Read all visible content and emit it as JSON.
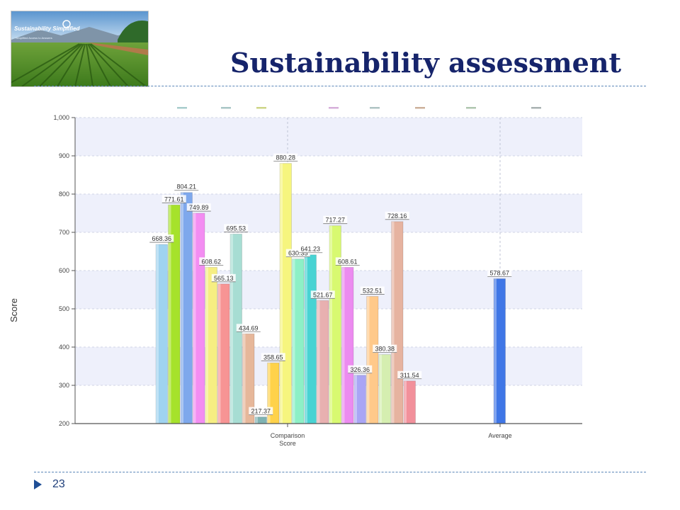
{
  "slide": {
    "title": "Sustainability assessment",
    "page_number": "23",
    "logo": {
      "name": "Sustainability Simplified",
      "tagline": "Simplified Access to Answers"
    }
  },
  "chart_data": {
    "type": "bar",
    "categories": [
      "Comparison Score",
      "Average"
    ],
    "ylabel": "Score",
    "ylim": [
      200,
      1000
    ],
    "yticks": [
      200,
      300,
      400,
      500,
      600,
      700,
      800,
      900,
      1000
    ],
    "ytick_labels": [
      "200",
      "300",
      "400",
      "500",
      "600",
      "700",
      "800",
      "900",
      "1,000"
    ],
    "grid": true,
    "legend_position": "top",
    "series": [
      {
        "label": "668.36",
        "value": 668.36,
        "category": "Comparison Score",
        "color": "#9fd3f0"
      },
      {
        "label": "771.61",
        "value": 771.61,
        "category": "Comparison Score",
        "color": "#a6e22b"
      },
      {
        "label": "804.21",
        "value": 804.21,
        "category": "Comparison Score",
        "color": "#7ea8ec"
      },
      {
        "label": "749.89",
        "value": 749.89,
        "category": "Comparison Score",
        "color": "#f38df2"
      },
      {
        "label": "608.62",
        "value": 608.62,
        "category": "Comparison Score",
        "color": "#f6ee82"
      },
      {
        "label": "565.13",
        "value": 565.13,
        "category": "Comparison Score",
        "color": "#f79494"
      },
      {
        "label": "695.53",
        "value": 695.53,
        "category": "Comparison Score",
        "color": "#a7ddd3"
      },
      {
        "label": "434.69",
        "value": 434.69,
        "category": "Comparison Score",
        "color": "#e6b79a"
      },
      {
        "label": "217.37",
        "value": 217.37,
        "category": "Comparison Score",
        "color": "#7fb3b3"
      },
      {
        "label": "358.65",
        "value": 358.65,
        "category": "Comparison Score",
        "color": "#ffd24a"
      },
      {
        "label": "880.28",
        "value": 880.28,
        "category": "Comparison Score",
        "color": "#f6f57e"
      },
      {
        "label": "630.35",
        "value": 630.35,
        "category": "Comparison Score",
        "color": "#8df0c6"
      },
      {
        "label": "641.23",
        "value": 641.23,
        "category": "Comparison Score",
        "color": "#48d3d3"
      },
      {
        "label": "521.67",
        "value": 521.67,
        "category": "Comparison Score",
        "color": "#e8b0b0"
      },
      {
        "label": "717.27",
        "value": 717.27,
        "category": "Comparison Score",
        "color": "#d8f970"
      },
      {
        "label": "608.61",
        "value": 608.61,
        "category": "Comparison Score",
        "color": "#ec8bf0"
      },
      {
        "label": "326.36",
        "value": 326.36,
        "category": "Comparison Score",
        "color": "#a9a5f5"
      },
      {
        "label": "532.51",
        "value": 532.51,
        "category": "Comparison Score",
        "color": "#ffc98a"
      },
      {
        "label": "380.38",
        "value": 380.38,
        "category": "Comparison Score",
        "color": "#d5eeb0"
      },
      {
        "label": "728.16",
        "value": 728.16,
        "category": "Comparison Score",
        "color": "#e6b3a0"
      },
      {
        "label": "311.54",
        "value": 311.54,
        "category": "Comparison Score",
        "color": "#f2909b"
      },
      {
        "label": "578.67",
        "value": 578.67,
        "category": "Average",
        "color": "#3f76e6"
      }
    ],
    "legend_colors": [
      "#9fc6c6",
      "#a0c0c0",
      "#c8d07a",
      "#d2a6d6",
      "#a6bcbc",
      "#c6a890",
      "#a6c0a6",
      "#a0aaaa"
    ]
  }
}
